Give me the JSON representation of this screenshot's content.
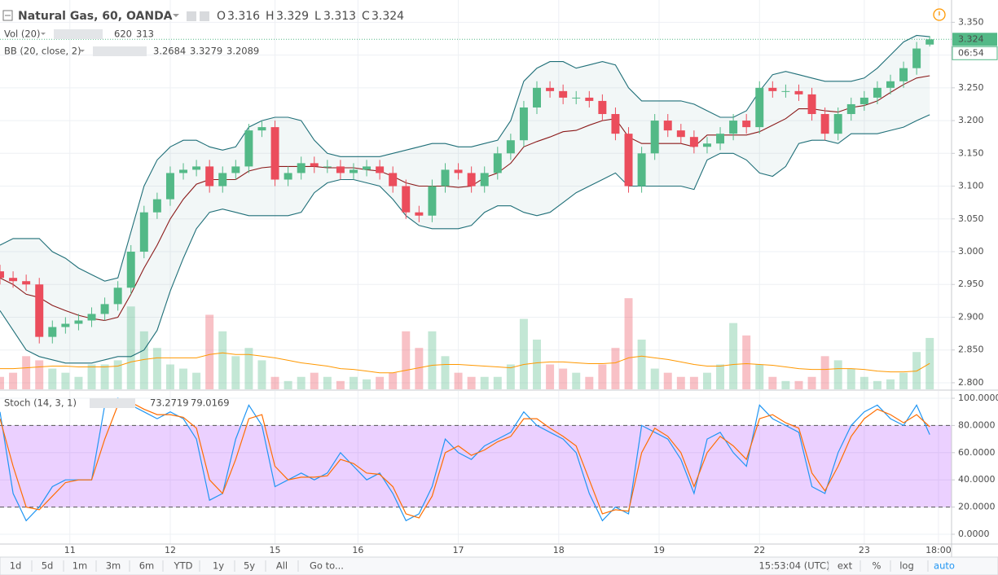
{
  "chart_data": {
    "type": "candlestick",
    "title": "Natural Gas, 60, OANDA",
    "header": {
      "o_label": "O",
      "o": 3.316,
      "h_label": "H",
      "h": 3.329,
      "l_label": "L",
      "l": 3.313,
      "c_label": "C",
      "c": 3.324
    },
    "x": [
      0,
      3,
      6,
      9,
      12,
      15,
      18,
      21,
      24,
      27,
      30,
      33,
      36,
      39,
      42,
      45,
      48,
      51,
      54,
      57,
      60,
      63,
      66,
      69,
      72,
      75,
      78,
      81,
      84,
      87,
      90,
      93,
      96,
      99,
      102,
      105,
      108,
      111,
      114,
      117,
      120,
      123,
      126,
      129,
      132,
      135,
      138,
      141,
      144,
      147,
      150,
      153,
      156,
      159,
      162,
      165,
      168,
      171,
      174,
      177,
      180,
      183,
      186,
      189,
      192,
      195,
      198,
      201,
      204,
      207,
      210,
      213
    ],
    "open": [
      2.97,
      2.96,
      2.955,
      2.95,
      2.87,
      2.885,
      2.89,
      2.895,
      2.905,
      2.92,
      2.945,
      3.0,
      3.06,
      3.08,
      3.12,
      3.125,
      3.13,
      3.1,
      3.12,
      3.13,
      3.185,
      3.19,
      3.11,
      3.12,
      3.135,
      3.13,
      3.13,
      3.12,
      3.125,
      3.13,
      3.12,
      3.1,
      3.06,
      3.055,
      3.1,
      3.125,
      3.12,
      3.1,
      3.12,
      3.15,
      3.17,
      3.22,
      3.25,
      3.245,
      3.235,
      3.235,
      3.23,
      3.21,
      3.18,
      3.1,
      3.15,
      3.2,
      3.185,
      3.175,
      3.16,
      3.165,
      3.18,
      3.2,
      3.19,
      3.25,
      3.245,
      3.245,
      3.24,
      3.21,
      3.18,
      3.21,
      3.225,
      3.235,
      3.25,
      3.26,
      3.28,
      3.316
    ],
    "high": [
      2.98,
      2.97,
      2.965,
      2.96,
      2.895,
      2.9,
      2.905,
      2.915,
      2.93,
      2.955,
      3.01,
      3.07,
      3.09,
      3.13,
      3.135,
      3.14,
      3.14,
      3.13,
      3.14,
      3.195,
      3.2,
      3.2,
      3.13,
      3.145,
      3.145,
      3.14,
      3.14,
      3.135,
      3.14,
      3.14,
      3.13,
      3.11,
      3.07,
      3.11,
      3.135,
      3.135,
      3.13,
      3.13,
      3.16,
      3.18,
      3.23,
      3.26,
      3.26,
      3.255,
      3.245,
      3.245,
      3.24,
      3.22,
      3.19,
      3.16,
      3.21,
      3.21,
      3.195,
      3.185,
      3.175,
      3.19,
      3.21,
      3.21,
      3.26,
      3.26,
      3.255,
      3.255,
      3.25,
      3.22,
      3.22,
      3.235,
      3.245,
      3.26,
      3.27,
      3.29,
      3.32,
      3.329
    ],
    "low": [
      2.95,
      2.945,
      2.94,
      2.86,
      2.86,
      2.875,
      2.88,
      2.885,
      2.895,
      2.91,
      2.935,
      2.99,
      3.05,
      3.07,
      3.11,
      3.115,
      3.09,
      3.09,
      3.11,
      3.12,
      3.175,
      3.1,
      3.1,
      3.11,
      3.12,
      3.12,
      3.11,
      3.11,
      3.115,
      3.11,
      3.09,
      3.05,
      3.045,
      3.045,
      3.09,
      3.11,
      3.09,
      3.09,
      3.11,
      3.14,
      3.16,
      3.21,
      3.235,
      3.225,
      3.225,
      3.22,
      3.2,
      3.17,
      3.09,
      3.09,
      3.14,
      3.175,
      3.165,
      3.15,
      3.15,
      3.155,
      3.17,
      3.18,
      3.18,
      3.235,
      3.235,
      3.23,
      3.2,
      3.17,
      3.17,
      3.2,
      3.215,
      3.225,
      3.24,
      3.25,
      3.27,
      3.313
    ],
    "close": [
      2.96,
      2.955,
      2.95,
      2.87,
      2.885,
      2.89,
      2.895,
      2.905,
      2.92,
      2.945,
      3.0,
      3.06,
      3.08,
      3.12,
      3.125,
      3.13,
      3.1,
      3.12,
      3.13,
      3.185,
      3.19,
      3.11,
      3.12,
      3.135,
      3.13,
      3.13,
      3.12,
      3.125,
      3.13,
      3.12,
      3.1,
      3.06,
      3.055,
      3.1,
      3.125,
      3.12,
      3.1,
      3.12,
      3.15,
      3.17,
      3.22,
      3.25,
      3.245,
      3.235,
      3.235,
      3.23,
      3.21,
      3.18,
      3.1,
      3.15,
      3.2,
      3.185,
      3.175,
      3.16,
      3.165,
      3.18,
      3.2,
      3.19,
      3.25,
      3.245,
      3.245,
      3.24,
      3.21,
      3.18,
      3.21,
      3.225,
      3.235,
      3.25,
      3.26,
      3.28,
      3.31,
      3.324
    ],
    "colors": {
      "up": "#53b987",
      "down": "#eb4d5c"
    },
    "xlim": [
      0,
      218
    ],
    "xticks": [
      {
        "value": 16,
        "label": "11"
      },
      {
        "value": 39,
        "label": "12"
      },
      {
        "value": 63,
        "label": "15"
      },
      {
        "value": 82,
        "label": "16"
      },
      {
        "value": 105,
        "label": "17"
      },
      {
        "value": 128,
        "label": "18"
      },
      {
        "value": 151,
        "label": "19"
      },
      {
        "value": 174,
        "label": "22"
      },
      {
        "value": 198,
        "label": "23"
      },
      {
        "value": 215,
        "label": "18:00"
      }
    ],
    "ylim": [
      2.79,
      3.384
    ],
    "yticks": [
      {
        "value": 2.8,
        "label": "2.800"
      },
      {
        "value": 2.85,
        "label": "2.850"
      },
      {
        "value": 2.9,
        "label": "2.900"
      },
      {
        "value": 2.95,
        "label": "2.950"
      },
      {
        "value": 3.0,
        "label": "3.000"
      },
      {
        "value": 3.05,
        "label": "3.050"
      },
      {
        "value": 3.1,
        "label": "3.100"
      },
      {
        "value": 3.15,
        "label": "3.150"
      },
      {
        "value": 3.2,
        "label": "3.200"
      },
      {
        "value": 3.25,
        "label": "3.250"
      },
      {
        "value": 3.3,
        "label": "3.300"
      },
      {
        "value": 3.35,
        "label": "3.350"
      }
    ],
    "grid": true,
    "last_price": 3.324,
    "countdown": "06:54",
    "volume": {
      "name": "Vol (20)",
      "last": 620,
      "ma_last": 313,
      "ma_color": "#ff9800",
      "ylim": [
        0,
        4700
      ],
      "values": [
        150,
        200,
        400,
        350,
        250,
        200,
        150,
        300,
        300,
        350,
        1000,
        700,
        500,
        300,
        250,
        200,
        900,
        700,
        400,
        500,
        350,
        150,
        100,
        150,
        200,
        150,
        100,
        150,
        120,
        150,
        200,
        700,
        500,
        700,
        400,
        200,
        150,
        150,
        150,
        300,
        850,
        600,
        300,
        250,
        200,
        150,
        300,
        500,
        1100,
        600,
        250,
        200,
        150,
        150,
        200,
        300,
        800,
        650,
        300,
        150,
        100,
        100,
        150,
        400,
        350,
        250,
        150,
        100,
        120,
        200,
        450,
        620
      ],
      "ma": [
        250,
        250,
        260,
        270,
        280,
        280,
        270,
        270,
        270,
        280,
        330,
        360,
        380,
        380,
        380,
        380,
        420,
        440,
        420,
        420,
        400,
        380,
        350,
        320,
        300,
        280,
        250,
        240,
        220,
        200,
        200,
        230,
        260,
        290,
        300,
        300,
        290,
        280,
        270,
        260,
        300,
        320,
        330,
        330,
        320,
        310,
        310,
        320,
        380,
        400,
        380,
        360,
        330,
        300,
        280,
        280,
        300,
        310,
        300,
        290,
        270,
        250,
        240,
        240,
        250,
        250,
        240,
        220,
        210,
        210,
        220,
        313
      ]
    },
    "bollinger": {
      "name": "BB (20, close, 2)",
      "last_basis": 3.2684,
      "last_upper": 3.3279,
      "last_lower": 3.2089,
      "basis_color": "#8b1a1a",
      "band_color": "#1f6f78",
      "basis": [
        2.96,
        2.95,
        2.935,
        2.93,
        2.918,
        2.91,
        2.903,
        2.898,
        2.895,
        2.9,
        2.935,
        2.975,
        3.01,
        3.05,
        3.08,
        3.103,
        3.11,
        3.11,
        3.11,
        3.123,
        3.128,
        3.13,
        3.13,
        3.13,
        3.13,
        3.128,
        3.128,
        3.128,
        3.125,
        3.123,
        3.115,
        3.105,
        3.1,
        3.1,
        3.1,
        3.098,
        3.1,
        3.113,
        3.12,
        3.135,
        3.16,
        3.168,
        3.175,
        3.183,
        3.185,
        3.193,
        3.2,
        3.203,
        3.175,
        3.165,
        3.165,
        3.165,
        3.165,
        3.16,
        3.178,
        3.178,
        3.178,
        3.178,
        3.183,
        3.193,
        3.203,
        3.218,
        3.218,
        3.215,
        3.213,
        3.22,
        3.223,
        3.23,
        3.243,
        3.255,
        3.265,
        3.2684
      ],
      "upper": [
        3.01,
        3.02,
        3.02,
        3.02,
        3.0,
        2.99,
        2.975,
        2.965,
        2.955,
        2.96,
        3.03,
        3.1,
        3.14,
        3.16,
        3.17,
        3.17,
        3.16,
        3.155,
        3.16,
        3.19,
        3.2,
        3.205,
        3.205,
        3.2,
        3.17,
        3.15,
        3.145,
        3.145,
        3.145,
        3.145,
        3.15,
        3.155,
        3.16,
        3.165,
        3.165,
        3.16,
        3.16,
        3.165,
        3.17,
        3.2,
        3.26,
        3.28,
        3.29,
        3.29,
        3.28,
        3.285,
        3.29,
        3.285,
        3.25,
        3.23,
        3.23,
        3.23,
        3.23,
        3.225,
        3.215,
        3.205,
        3.205,
        3.215,
        3.245,
        3.27,
        3.275,
        3.27,
        3.265,
        3.26,
        3.26,
        3.26,
        3.265,
        3.28,
        3.3,
        3.32,
        3.33,
        3.3279
      ],
      "lower": [
        2.91,
        2.88,
        2.85,
        2.84,
        2.835,
        2.83,
        2.83,
        2.83,
        2.835,
        2.84,
        2.84,
        2.85,
        2.88,
        2.94,
        2.99,
        3.035,
        3.06,
        3.065,
        3.06,
        3.055,
        3.055,
        3.055,
        3.055,
        3.06,
        3.09,
        3.105,
        3.11,
        3.11,
        3.105,
        3.1,
        3.08,
        3.055,
        3.04,
        3.035,
        3.035,
        3.035,
        3.04,
        3.06,
        3.07,
        3.07,
        3.06,
        3.055,
        3.06,
        3.075,
        3.09,
        3.1,
        3.11,
        3.12,
        3.1,
        3.1,
        3.1,
        3.1,
        3.1,
        3.095,
        3.14,
        3.15,
        3.15,
        3.14,
        3.12,
        3.115,
        3.13,
        3.165,
        3.17,
        3.17,
        3.165,
        3.18,
        3.18,
        3.18,
        3.185,
        3.19,
        3.2,
        3.2089
      ]
    },
    "stochastic": {
      "name": "Stoch (14, 3, 1)",
      "k_last": 73.2719,
      "d_last": 79.0169,
      "k_color": "#2196f3",
      "d_color": "#ff6d00",
      "ylim": [
        -7.2,
        105.4
      ],
      "bands": [
        20,
        80
      ],
      "yticks": [
        {
          "value": 0,
          "label": "0.0000"
        },
        {
          "value": 20,
          "label": "20.0000"
        },
        {
          "value": 40,
          "label": "40.0000"
        },
        {
          "value": 60,
          "label": "60.0000"
        },
        {
          "value": 80,
          "label": "80.0000"
        },
        {
          "value": 100,
          "label": "100.0000"
        }
      ],
      "k": [
        90,
        30,
        10,
        20,
        35,
        40,
        40,
        40,
        95,
        100,
        95,
        90,
        85,
        90,
        85,
        70,
        25,
        30,
        70,
        95,
        80,
        35,
        40,
        45,
        40,
        45,
        60,
        50,
        40,
        45,
        30,
        10,
        15,
        35,
        70,
        60,
        55,
        65,
        70,
        75,
        90,
        80,
        75,
        70,
        60,
        30,
        10,
        20,
        15,
        80,
        75,
        70,
        55,
        30,
        70,
        75,
        60,
        50,
        95,
        85,
        80,
        75,
        35,
        30,
        60,
        80,
        90,
        95,
        85,
        80,
        95,
        73.2719
      ],
      "d": [
        85,
        50,
        20,
        18,
        28,
        38,
        40,
        40,
        70,
        95,
        97,
        92,
        88,
        88,
        86,
        78,
        40,
        30,
        55,
        85,
        88,
        50,
        40,
        42,
        42,
        43,
        55,
        52,
        45,
        44,
        35,
        15,
        12,
        28,
        60,
        65,
        58,
        62,
        68,
        72,
        85,
        85,
        78,
        72,
        65,
        40,
        15,
        18,
        17,
        60,
        78,
        72,
        60,
        35,
        60,
        72,
        65,
        55,
        85,
        88,
        82,
        78,
        45,
        32,
        50,
        72,
        85,
        92,
        88,
        82,
        88,
        79.0169
      ]
    }
  },
  "toolbar": {
    "ranges": [
      "1d",
      "5d",
      "1m",
      "3m",
      "6m",
      "YTD",
      "1y",
      "5y",
      "All"
    ],
    "goto": "Go to...",
    "clock": "15:53:04 (UTC)",
    "options": [
      "ext",
      "%",
      "log",
      "auto"
    ]
  }
}
